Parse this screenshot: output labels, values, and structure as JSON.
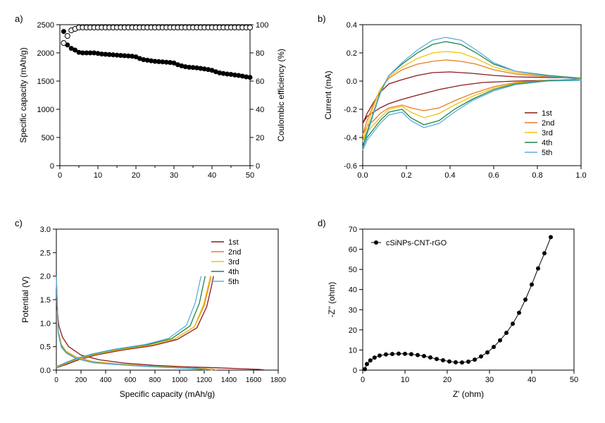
{
  "figure": {
    "background_color": "#ffffff",
    "panels": {
      "a": {
        "label": "a)",
        "type": "scatter",
        "xlabel": "",
        "ylabel_left": "Specific capacity (mAh/g)",
        "ylabel_right": "Coulombic efficiency (%)",
        "xlim": [
          0,
          50
        ],
        "xtick_step": 10,
        "ylim_left": [
          0,
          2500
        ],
        "ytick_left_step": 500,
        "ylim_right": [
          0,
          100
        ],
        "ytick_right_step": 20,
        "label_fontsize": 12,
        "tick_fontsize": 11,
        "series_capacity": {
          "marker": "filled-circle",
          "marker_size": 3.5,
          "color": "#000000",
          "x": [
            1,
            2,
            3,
            4,
            5,
            6,
            7,
            8,
            9,
            10,
            11,
            12,
            13,
            14,
            15,
            16,
            17,
            18,
            19,
            20,
            21,
            22,
            23,
            24,
            25,
            26,
            27,
            28,
            29,
            30,
            31,
            32,
            33,
            34,
            35,
            36,
            37,
            38,
            39,
            40,
            41,
            42,
            43,
            44,
            45,
            46,
            47,
            48,
            49,
            50
          ],
          "y": [
            2380,
            2140,
            2080,
            2050,
            2010,
            2000,
            2000,
            2000,
            2000,
            1990,
            1980,
            1975,
            1970,
            1965,
            1960,
            1955,
            1950,
            1945,
            1940,
            1930,
            1900,
            1880,
            1870,
            1860,
            1850,
            1845,
            1840,
            1835,
            1830,
            1820,
            1790,
            1770,
            1755,
            1745,
            1740,
            1735,
            1725,
            1715,
            1705,
            1690,
            1665,
            1645,
            1635,
            1625,
            1618,
            1608,
            1600,
            1588,
            1575,
            1565
          ]
        },
        "series_efficiency": {
          "marker": "open-circle",
          "marker_size": 3.5,
          "color": "#000000",
          "x": [
            1,
            2,
            3,
            4,
            5,
            6,
            7,
            8,
            9,
            10,
            11,
            12,
            13,
            14,
            15,
            16,
            17,
            18,
            19,
            20,
            21,
            22,
            23,
            24,
            25,
            26,
            27,
            28,
            29,
            30,
            31,
            32,
            33,
            34,
            35,
            36,
            37,
            38,
            39,
            40,
            41,
            42,
            43,
            44,
            45,
            46,
            47,
            48,
            49,
            50
          ],
          "y": [
            87,
            92,
            96,
            97,
            98,
            98,
            98,
            98,
            98,
            98,
            98,
            98,
            98,
            98,
            98,
            98,
            98,
            98,
            98,
            98,
            98,
            98,
            98,
            98,
            98,
            98,
            98,
            98,
            98,
            98,
            98,
            98,
            98,
            98,
            98,
            98,
            98,
            98,
            98,
            98,
            98,
            98,
            98,
            98,
            98,
            98,
            98,
            98,
            98,
            98
          ]
        }
      },
      "b": {
        "label": "b)",
        "type": "line",
        "xlabel": "",
        "ylabel": "Current (mA)",
        "xlim": [
          0.0,
          1.0
        ],
        "xtick_step": 0.2,
        "ylim": [
          -0.6,
          0.4
        ],
        "ytick_step": 0.2,
        "label_fontsize": 12,
        "tick_fontsize": 11,
        "legend_position": "bottom-right",
        "line_width": 1.3,
        "series": [
          {
            "name": "1st",
            "color": "#8b1a1a",
            "x": [
              0.0,
              0.02,
              0.05,
              0.08,
              0.12,
              0.18,
              0.25,
              0.35,
              0.45,
              0.55,
              0.7,
              0.85,
              1.0,
              1.0,
              0.85,
              0.7,
              0.6,
              0.5,
              0.4,
              0.32,
              0.25,
              0.18,
              0.12,
              0.08,
              0.05,
              0.02,
              0.0
            ],
            "y": [
              -0.3,
              -0.25,
              -0.22,
              -0.19,
              -0.16,
              -0.13,
              -0.1,
              -0.06,
              -0.03,
              -0.01,
              0.0,
              0.005,
              0.01,
              0.02,
              0.025,
              0.03,
              0.04,
              0.055,
              0.065,
              0.06,
              0.04,
              0.01,
              -0.02,
              -0.08,
              -0.15,
              -0.23,
              -0.3
            ]
          },
          {
            "name": "2nd",
            "color": "#e67e22",
            "x": [
              0.0,
              0.02,
              0.05,
              0.08,
              0.12,
              0.18,
              0.22,
              0.28,
              0.35,
              0.42,
              0.5,
              0.6,
              0.7,
              0.85,
              1.0,
              1.0,
              0.85,
              0.7,
              0.6,
              0.52,
              0.45,
              0.38,
              0.32,
              0.25,
              0.18,
              0.12,
              0.08,
              0.05,
              0.02,
              0.0
            ],
            "y": [
              -0.38,
              -0.32,
              -0.28,
              -0.23,
              -0.19,
              -0.17,
              -0.19,
              -0.21,
              -0.19,
              -0.14,
              -0.09,
              -0.04,
              -0.01,
              0.005,
              0.01,
              0.02,
              0.03,
              0.05,
              0.08,
              0.12,
              0.14,
              0.15,
              0.14,
              0.12,
              0.08,
              0.02,
              -0.06,
              -0.16,
              -0.28,
              -0.38
            ]
          },
          {
            "name": "3rd",
            "color": "#f1c40f",
            "x": [
              0.0,
              0.02,
              0.05,
              0.08,
              0.12,
              0.18,
              0.22,
              0.28,
              0.35,
              0.42,
              0.5,
              0.6,
              0.7,
              0.85,
              1.0,
              1.0,
              0.85,
              0.7,
              0.6,
              0.52,
              0.45,
              0.38,
              0.32,
              0.25,
              0.18,
              0.12,
              0.08,
              0.05,
              0.02,
              0.0
            ],
            "y": [
              -0.43,
              -0.36,
              -0.31,
              -0.26,
              -0.2,
              -0.18,
              -0.22,
              -0.26,
              -0.23,
              -0.17,
              -0.11,
              -0.05,
              -0.015,
              0.005,
              0.01,
              0.02,
              0.035,
              0.06,
              0.1,
              0.16,
              0.2,
              0.21,
              0.2,
              0.16,
              0.1,
              0.03,
              -0.06,
              -0.18,
              -0.32,
              -0.43
            ]
          },
          {
            "name": "4th",
            "color": "#1e8449",
            "x": [
              0.0,
              0.02,
              0.05,
              0.08,
              0.12,
              0.18,
              0.22,
              0.28,
              0.35,
              0.42,
              0.5,
              0.6,
              0.7,
              0.85,
              1.0,
              1.0,
              0.85,
              0.7,
              0.6,
              0.52,
              0.45,
              0.38,
              0.32,
              0.25,
              0.18,
              0.12,
              0.08,
              0.05,
              0.02,
              0.0
            ],
            "y": [
              -0.47,
              -0.4,
              -0.34,
              -0.28,
              -0.22,
              -0.2,
              -0.26,
              -0.31,
              -0.28,
              -0.2,
              -0.13,
              -0.06,
              -0.02,
              0.005,
              0.01,
              0.02,
              0.04,
              0.07,
              0.12,
              0.2,
              0.26,
              0.28,
              0.26,
              0.2,
              0.12,
              0.04,
              -0.08,
              -0.22,
              -0.36,
              -0.47
            ]
          },
          {
            "name": "5th",
            "color": "#5dade2",
            "x": [
              0.0,
              0.02,
              0.05,
              0.08,
              0.12,
              0.18,
              0.22,
              0.28,
              0.35,
              0.42,
              0.5,
              0.6,
              0.7,
              0.85,
              1.0,
              1.0,
              0.85,
              0.7,
              0.6,
              0.52,
              0.45,
              0.38,
              0.32,
              0.25,
              0.18,
              0.12,
              0.08,
              0.05,
              0.02,
              0.0
            ],
            "y": [
              -0.49,
              -0.42,
              -0.36,
              -0.3,
              -0.24,
              -0.22,
              -0.28,
              -0.33,
              -0.3,
              -0.22,
              -0.14,
              -0.07,
              -0.025,
              0.0,
              0.005,
              0.01,
              0.035,
              0.07,
              0.13,
              0.22,
              0.29,
              0.31,
              0.29,
              0.22,
              0.13,
              0.04,
              -0.09,
              -0.23,
              -0.38,
              -0.49
            ]
          }
        ]
      },
      "c": {
        "label": "c)",
        "type": "line",
        "xlabel": "Specific capacity (mAh/g)",
        "ylabel": "Potential (V)",
        "xlim": [
          0,
          1800
        ],
        "xtick_step": 200,
        "ylim": [
          0.0,
          3.0
        ],
        "ytick_step": 0.5,
        "label_fontsize": 12,
        "tick_fontsize": 11,
        "legend_position": "top-right",
        "line_width": 1.3,
        "series": [
          {
            "name": "1st",
            "color": "#8b1a1a",
            "discharge_x": [
              0,
              20,
              50,
              100,
              200,
              350,
              550,
              800,
              1050,
              1300,
              1500,
              1650,
              1700
            ],
            "discharge_y": [
              1.5,
              0.95,
              0.7,
              0.5,
              0.32,
              0.22,
              0.15,
              0.1,
              0.07,
              0.05,
              0.03,
              0.015,
              0.0
            ],
            "charge_x": [
              0,
              80,
              180,
              320,
              520,
              780,
              980,
              1140,
              1220,
              1260,
              1275
            ],
            "charge_y": [
              0.05,
              0.12,
              0.22,
              0.32,
              0.42,
              0.52,
              0.65,
              0.9,
              1.35,
              1.8,
              2.0
            ]
          },
          {
            "name": "2nd",
            "color": "#e67e22",
            "discharge_x": [
              0,
              15,
              40,
              80,
              160,
              300,
              500,
              750,
              1000,
              1150,
              1260,
              1300
            ],
            "discharge_y": [
              2.0,
              0.85,
              0.55,
              0.4,
              0.28,
              0.18,
              0.13,
              0.09,
              0.06,
              0.04,
              0.02,
              0.0
            ],
            "charge_x": [
              0,
              70,
              170,
              310,
              500,
              760,
              960,
              1120,
              1200,
              1240,
              1255
            ],
            "charge_y": [
              0.06,
              0.13,
              0.23,
              0.33,
              0.43,
              0.53,
              0.66,
              0.92,
              1.38,
              1.82,
              2.0
            ]
          },
          {
            "name": "3rd",
            "color": "#f1c40f",
            "discharge_x": [
              0,
              15,
              40,
              80,
              160,
              300,
              500,
              740,
              980,
              1130,
              1230,
              1270
            ],
            "discharge_y": [
              2.0,
              0.83,
              0.53,
              0.39,
              0.27,
              0.17,
              0.125,
              0.085,
              0.058,
              0.038,
              0.018,
              0.0
            ],
            "charge_x": [
              0,
              70,
              170,
              310,
              500,
              760,
              960,
              1120,
              1195,
              1235,
              1250
            ],
            "charge_y": [
              0.06,
              0.135,
              0.235,
              0.335,
              0.435,
              0.535,
              0.665,
              0.925,
              1.4,
              1.83,
              2.0
            ]
          },
          {
            "name": "4th",
            "color": "#1e8449",
            "discharge_x": [
              0,
              15,
              40,
              80,
              160,
              300,
              500,
              730,
              960,
              1110,
              1205,
              1240
            ],
            "discharge_y": [
              2.0,
              0.8,
              0.51,
              0.37,
              0.25,
              0.16,
              0.12,
              0.08,
              0.055,
              0.035,
              0.016,
              0.0
            ],
            "charge_x": [
              0,
              65,
              160,
              295,
              480,
              740,
              935,
              1085,
              1160,
              1195,
              1208
            ],
            "charge_y": [
              0.07,
              0.14,
              0.24,
              0.34,
              0.44,
              0.54,
              0.67,
              0.94,
              1.42,
              1.85,
              2.0
            ]
          },
          {
            "name": "5th",
            "color": "#5dade2",
            "discharge_x": [
              0,
              15,
              40,
              80,
              160,
              300,
              500,
              720,
              940,
              1088,
              1180,
              1215
            ],
            "discharge_y": [
              2.0,
              0.78,
              0.49,
              0.36,
              0.245,
              0.155,
              0.115,
              0.078,
              0.052,
              0.033,
              0.015,
              0.0
            ],
            "charge_x": [
              0,
              62,
              155,
              290,
              470,
              720,
              910,
              1055,
              1128,
              1162,
              1175
            ],
            "charge_y": [
              0.075,
              0.145,
              0.245,
              0.345,
              0.445,
              0.545,
              0.675,
              0.95,
              1.44,
              1.86,
              2.0
            ]
          }
        ]
      },
      "d": {
        "label": "d)",
        "type": "scatter-line",
        "xlabel": "Z' (ohm)",
        "ylabel": "-Z'' (ohm)",
        "xlim": [
          0,
          50
        ],
        "xtick_step": 10,
        "ylim": [
          0,
          70
        ],
        "ytick_step": 10,
        "label_fontsize": 12,
        "tick_fontsize": 11,
        "legend_position": "top-left",
        "series": {
          "name": "cSiNPs-CNT-rGO",
          "color": "#000000",
          "marker": "filled-circle",
          "marker_size": 3,
          "line_width": 1,
          "x": [
            0.5,
            1.0,
            1.8,
            2.8,
            4.0,
            5.5,
            7.0,
            8.5,
            10.0,
            11.5,
            13.0,
            14.5,
            16.0,
            17.5,
            19.0,
            20.5,
            22.0,
            23.5,
            25.0,
            26.5,
            28.0,
            29.5,
            31.0,
            32.5,
            34.0,
            35.5,
            37.0,
            38.5,
            40.0,
            41.5,
            43.0,
            44.5
          ],
          "y": [
            0.5,
            3.0,
            4.8,
            6.2,
            7.2,
            7.8,
            8.0,
            8.2,
            8.1,
            7.9,
            7.5,
            7.0,
            6.3,
            5.5,
            4.9,
            4.3,
            3.9,
            3.8,
            4.2,
            5.2,
            6.8,
            8.8,
            11.5,
            14.8,
            18.5,
            23.0,
            28.5,
            35.0,
            42.5,
            50.5,
            58.0,
            66.0
          ]
        }
      }
    }
  }
}
